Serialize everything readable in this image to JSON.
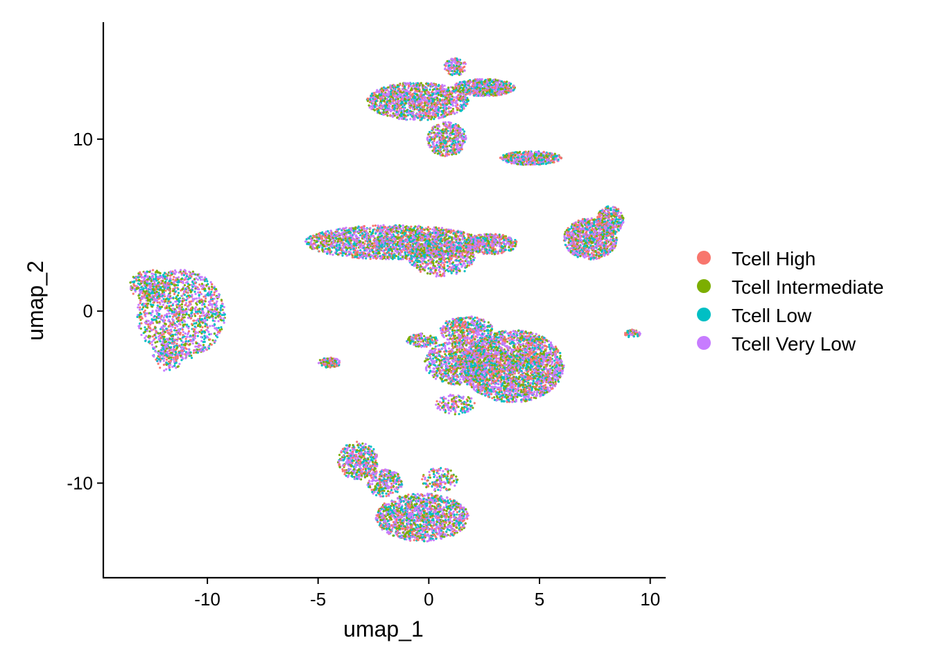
{
  "chart_data": {
    "type": "scatter",
    "title": "",
    "xlabel": "umap_1",
    "ylabel": "umap_2",
    "xlim": [
      -14.7,
      10.7
    ],
    "ylim": [
      -15.5,
      16.8
    ],
    "xticks": [
      {
        "value": -10,
        "label": "-10"
      },
      {
        "value": -5,
        "label": "-5"
      },
      {
        "value": 0,
        "label": "0"
      },
      {
        "value": 5,
        "label": "5"
      },
      {
        "value": 10,
        "label": "10"
      }
    ],
    "yticks": [
      {
        "value": -10,
        "label": "-10"
      },
      {
        "value": 0,
        "label": "0"
      },
      {
        "value": 10,
        "label": "10"
      }
    ],
    "grid": false,
    "legend_position": "right",
    "series": [
      {
        "name": "Tcell High",
        "color": "#F8766D"
      },
      {
        "name": "Tcell Intermediate",
        "color": "#7CAE00"
      },
      {
        "name": "Tcell Low",
        "color": "#00BFC4"
      },
      {
        "name": "Tcell Very Low",
        "color": "#C77CFF"
      }
    ],
    "clusters": [
      {
        "cx": -11.2,
        "cy": -0.2,
        "rx": 2.0,
        "ry": 2.6,
        "weight": 9
      },
      {
        "cx": -12.6,
        "cy": 1.5,
        "rx": 0.9,
        "ry": 0.9,
        "weight": 2
      },
      {
        "cx": -11.8,
        "cy": -2.5,
        "rx": 0.7,
        "ry": 1.0,
        "weight": 1
      },
      {
        "cx": -1.6,
        "cy": 4.0,
        "rx": 4.0,
        "ry": 1.0,
        "weight": 14
      },
      {
        "cx": 0.6,
        "cy": 3.1,
        "rx": 1.5,
        "ry": 1.1,
        "weight": 4
      },
      {
        "cx": 2.8,
        "cy": 3.9,
        "rx": 1.2,
        "ry": 0.6,
        "weight": 3
      },
      {
        "cx": -0.5,
        "cy": 12.2,
        "rx": 2.3,
        "ry": 1.1,
        "weight": 9
      },
      {
        "cx": 2.5,
        "cy": 13.0,
        "rx": 1.4,
        "ry": 0.5,
        "weight": 4
      },
      {
        "cx": 0.8,
        "cy": 10.0,
        "rx": 0.9,
        "ry": 1.0,
        "weight": 3
      },
      {
        "cx": 4.6,
        "cy": 8.9,
        "rx": 1.4,
        "ry": 0.4,
        "weight": 3
      },
      {
        "cx": 1.2,
        "cy": 14.2,
        "rx": 0.5,
        "ry": 0.5,
        "weight": 1
      },
      {
        "cx": 7.3,
        "cy": 4.2,
        "rx": 1.2,
        "ry": 1.2,
        "weight": 6
      },
      {
        "cx": 8.2,
        "cy": 5.3,
        "rx": 0.6,
        "ry": 0.8,
        "weight": 2
      },
      {
        "cx": 3.8,
        "cy": -3.2,
        "rx": 2.3,
        "ry": 2.1,
        "weight": 18
      },
      {
        "cx": 1.4,
        "cy": -3.0,
        "rx": 1.6,
        "ry": 1.3,
        "weight": 6
      },
      {
        "cx": 1.7,
        "cy": -1.1,
        "rx": 1.2,
        "ry": 0.8,
        "weight": 3
      },
      {
        "cx": -0.3,
        "cy": -1.7,
        "rx": 0.7,
        "ry": 0.4,
        "weight": 1
      },
      {
        "cx": 1.2,
        "cy": -5.4,
        "rx": 0.9,
        "ry": 0.6,
        "weight": 1
      },
      {
        "cx": -0.3,
        "cy": -12.0,
        "rx": 2.1,
        "ry": 1.4,
        "weight": 10
      },
      {
        "cx": -3.2,
        "cy": -8.7,
        "rx": 0.9,
        "ry": 1.1,
        "weight": 3
      },
      {
        "cx": -2.0,
        "cy": -10.0,
        "rx": 0.8,
        "ry": 0.8,
        "weight": 2
      },
      {
        "cx": 0.5,
        "cy": -9.8,
        "rx": 0.8,
        "ry": 0.7,
        "weight": 1
      },
      {
        "cx": -4.5,
        "cy": -3.0,
        "rx": 0.5,
        "ry": 0.3,
        "weight": 1
      },
      {
        "cx": 9.2,
        "cy": -1.3,
        "rx": 0.35,
        "ry": 0.25,
        "weight": 0.4
      }
    ]
  }
}
